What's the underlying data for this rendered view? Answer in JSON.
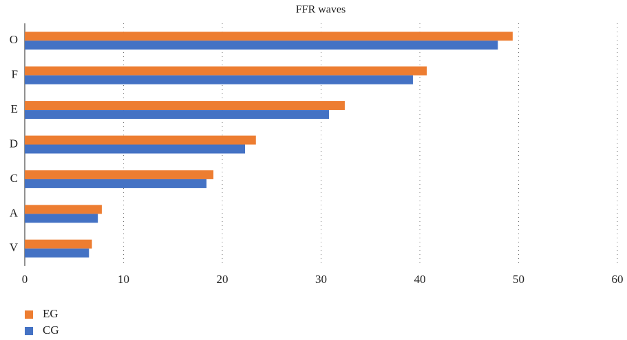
{
  "chart_data": {
    "type": "hbar",
    "title": "FFR waves",
    "categories": [
      "V",
      "A",
      "C",
      "D",
      "E",
      "F",
      "O"
    ],
    "series": [
      {
        "name": "EG",
        "color": "#ed7d31",
        "values": [
          6.8,
          7.8,
          19.1,
          23.4,
          32.4,
          40.7,
          49.4
        ]
      },
      {
        "name": "CG",
        "color": "#4472c4",
        "values": [
          6.5,
          7.4,
          18.4,
          22.3,
          30.8,
          39.3,
          47.9
        ]
      }
    ],
    "xlim": [
      0,
      60
    ],
    "xticks": [
      0,
      10,
      20,
      30,
      40,
      50,
      60
    ],
    "grid": true,
    "legend": "bottom-left"
  }
}
